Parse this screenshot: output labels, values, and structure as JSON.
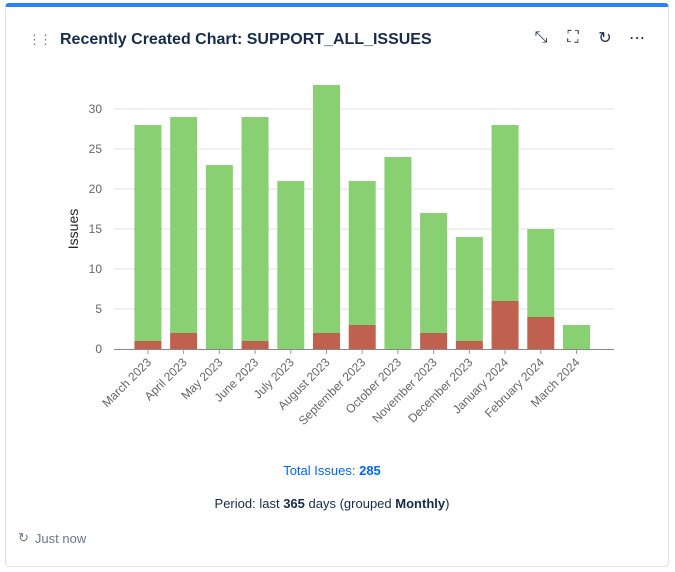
{
  "header": {
    "title": "Recently Created Chart: SUPPORT_ALL_ISSUES",
    "icons": [
      "drag-handle-icon",
      "minimize-icon",
      "fullscreen-icon",
      "refresh-icon",
      "more-icon"
    ]
  },
  "chart_data": {
    "type": "bar",
    "stacked": true,
    "ylabel": "Issues",
    "xlabel": "",
    "ylim": [
      0,
      33
    ],
    "yticks": [
      0,
      5,
      10,
      15,
      20,
      25,
      30
    ],
    "grid": true,
    "categories": [
      "March 2023",
      "April 2023",
      "May 2023",
      "June 2023",
      "July 2023",
      "August 2023",
      "September 2023",
      "October 2023",
      "November 2023",
      "December 2023",
      "January 2024",
      "February 2024",
      "March 2024"
    ],
    "series": [
      {
        "values": [
          1,
          2,
          0,
          1,
          0,
          2,
          3,
          0,
          2,
          1,
          6,
          4,
          0
        ],
        "color": "#c0604e"
      },
      {
        "values": [
          27,
          27,
          23,
          28,
          21,
          31,
          18,
          24,
          15,
          13,
          22,
          11,
          3
        ],
        "color": "#89d073"
      }
    ]
  },
  "footer": {
    "total_label": "Total Issues:",
    "total_value": "285",
    "period_prefix": "Period: last",
    "period_days": "365",
    "period_mid": "days (grouped",
    "period_group": "Monthly",
    "period_suffix": ")",
    "refreshed": "Just now"
  }
}
